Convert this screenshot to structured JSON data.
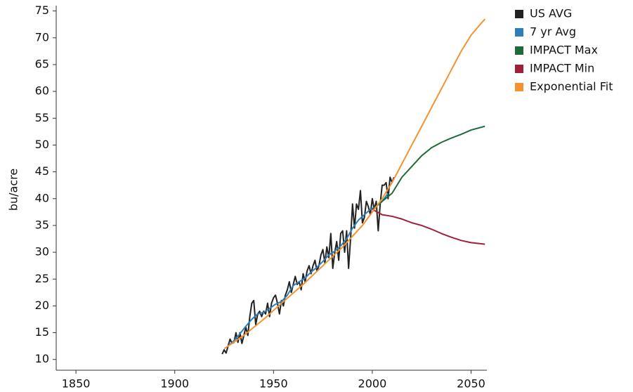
{
  "chart_data": {
    "type": "line",
    "y_label": "bu/acre",
    "xlim": [
      1840,
      2058
    ],
    "xticks": [
      1850,
      1900,
      1950,
      2000,
      2050
    ],
    "ylim": [
      8,
      76
    ],
    "yticks": [
      10,
      15,
      20,
      25,
      30,
      35,
      40,
      45,
      50,
      55,
      60,
      65,
      70,
      75
    ],
    "series": [
      {
        "name": "US AVG",
        "color": "#222222",
        "x": [
          1924,
          1925,
          1926,
          1927,
          1928,
          1929,
          1930,
          1931,
          1932,
          1933,
          1934,
          1935,
          1936,
          1937,
          1938,
          1939,
          1940,
          1941,
          1942,
          1943,
          1944,
          1945,
          1946,
          1947,
          1948,
          1949,
          1950,
          1951,
          1952,
          1953,
          1954,
          1955,
          1956,
          1957,
          1958,
          1959,
          1960,
          1961,
          1962,
          1963,
          1964,
          1965,
          1966,
          1967,
          1968,
          1969,
          1970,
          1971,
          1972,
          1973,
          1974,
          1975,
          1976,
          1977,
          1978,
          1979,
          1980,
          1981,
          1982,
          1983,
          1984,
          1985,
          1986,
          1987,
          1988,
          1989,
          1990,
          1991,
          1992,
          1993,
          1994,
          1995,
          1996,
          1997,
          1998,
          1999,
          2000,
          2001,
          2002,
          2003,
          2004,
          2005,
          2006,
          2007,
          2008,
          2009,
          2010,
          2011
        ],
        "values": [
          11.0,
          11.8,
          11.2,
          12.5,
          13.8,
          13.0,
          13.2,
          15.0,
          13.2,
          15.0,
          13.0,
          14.5,
          16.0,
          14.5,
          18.0,
          20.5,
          21.0,
          16.5,
          18.5,
          19.0,
          18.0,
          19.0,
          18.5,
          20.5,
          18.0,
          20.5,
          21.5,
          22.0,
          20.5,
          18.5,
          21.0,
          20.0,
          22.0,
          23.0,
          24.5,
          22.5,
          24.0,
          25.5,
          24.0,
          24.5,
          23.0,
          26.0,
          24.5,
          26.5,
          27.5,
          26.0,
          27.5,
          28.5,
          26.5,
          27.5,
          29.5,
          30.5,
          28.0,
          31.0,
          29.0,
          33.5,
          27.0,
          30.0,
          32.0,
          28.5,
          33.5,
          34.0,
          30.0,
          34.0,
          27.0,
          32.5,
          39.0,
          34.5,
          39.0,
          38.0,
          41.5,
          35.5,
          36.5,
          39.5,
          38.5,
          37.0,
          40.0,
          38.0,
          39.5,
          34.0,
          39.0,
          42.5,
          42.5,
          43.0,
          40.0,
          44.0,
          43.0,
          44.0
        ]
      },
      {
        "name": "7 yr Avg",
        "color": "#2e7fb8",
        "x": [
          1927,
          1930,
          1933,
          1936,
          1939,
          1942,
          1945,
          1948,
          1951,
          1954,
          1957,
          1960,
          1963,
          1966,
          1969,
          1972,
          1975,
          1978,
          1981,
          1984,
          1987,
          1990,
          1993,
          1996,
          1999,
          2002,
          2005,
          2008
        ],
        "values": [
          12.5,
          13.5,
          14.8,
          16.2,
          17.5,
          18.5,
          18.8,
          19.5,
          20.3,
          20.8,
          22.0,
          23.8,
          24.5,
          25.2,
          26.3,
          27.2,
          28.3,
          29.5,
          30.2,
          31.2,
          32.5,
          34.5,
          36.0,
          37.0,
          38.0,
          38.5,
          39.5,
          41.0
        ]
      },
      {
        "name": "IMPACT Max",
        "color": "#1e6b3a",
        "x": [
          2000,
          2005,
          2010,
          2015,
          2020,
          2025,
          2030,
          2035,
          2040,
          2045,
          2050,
          2057
        ],
        "values": [
          38.0,
          39.5,
          41.0,
          44.0,
          46.0,
          48.0,
          49.5,
          50.5,
          51.3,
          52.0,
          52.8,
          53.5
        ]
      },
      {
        "name": "IMPACT Min",
        "color": "#a0203a",
        "x": [
          2000,
          2005,
          2010,
          2015,
          2020,
          2025,
          2030,
          2035,
          2040,
          2045,
          2050,
          2057
        ],
        "values": [
          38.0,
          37.0,
          36.7,
          36.2,
          35.5,
          35.0,
          34.3,
          33.5,
          32.8,
          32.2,
          31.8,
          31.5
        ]
      },
      {
        "name": "Exponential Fit",
        "color": "#f5922f",
        "x": [
          1925,
          1935,
          1945,
          1955,
          1965,
          1975,
          1985,
          1995,
          2005,
          2010,
          2015,
          2020,
          2025,
          2030,
          2035,
          2040,
          2045,
          2050,
          2057
        ],
        "values": [
          12.0,
          14.5,
          17.5,
          20.8,
          24.0,
          27.5,
          31.0,
          35.0,
          40.0,
          43.0,
          46.5,
          50.0,
          53.5,
          57.0,
          60.5,
          64.0,
          67.5,
          70.5,
          73.5
        ]
      }
    ]
  }
}
